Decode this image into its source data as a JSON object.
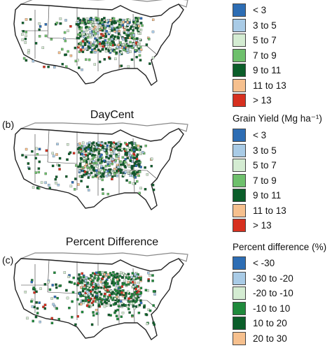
{
  "panels": [
    {
      "letter": "",
      "title": "",
      "legend_title": "",
      "legend": [
        {
          "label": "< 3",
          "color": "#2d6db4"
        },
        {
          "label": "3 to 5",
          "color": "#a9cbe6"
        },
        {
          "label": "5 to 7",
          "color": "#d4ecd2"
        },
        {
          "label": "7 to 9",
          "color": "#6ec06c"
        },
        {
          "label": "9 to 11",
          "color": "#0b5e2a"
        },
        {
          "label": "11 to 13",
          "color": "#f6c08e"
        },
        {
          "label": "> 13",
          "color": "#d7301f"
        }
      ]
    },
    {
      "letter": "(b)",
      "title": "DayCent",
      "legend_title": "Grain Yield (Mg ha⁻¹)",
      "legend": [
        {
          "label": "< 3",
          "color": "#2d6db4"
        },
        {
          "label": "3 to 5",
          "color": "#a9cbe6"
        },
        {
          "label": "5 to 7",
          "color": "#d4ecd2"
        },
        {
          "label": "7 to 9",
          "color": "#6ec06c"
        },
        {
          "label": "9 to 11",
          "color": "#0b5e2a"
        },
        {
          "label": "11 to 13",
          "color": "#f6c08e"
        },
        {
          "label": "> 13",
          "color": "#d7301f"
        }
      ]
    },
    {
      "letter": "(c)",
      "title": "Percent Difference",
      "legend_title": "Percent difference (%)",
      "legend": [
        {
          "label": "< -30",
          "color": "#2d6db4"
        },
        {
          "label": "-30 to -20",
          "color": "#a9cbe6"
        },
        {
          "label": "-20 to -10",
          "color": "#d4ecd2"
        },
        {
          "label": "-10 to 10",
          "color": "#1f8a3c"
        },
        {
          "label": "10 to 20",
          "color": "#0b5e2a"
        },
        {
          "label": "20 to 30",
          "color": "#f6c08e"
        }
      ]
    }
  ]
}
